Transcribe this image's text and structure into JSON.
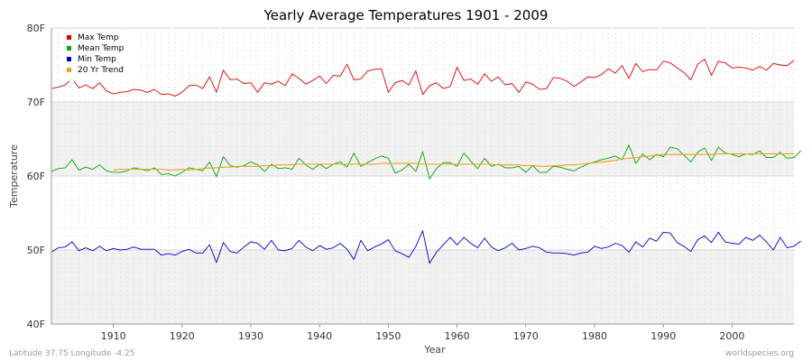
{
  "chart_data": {
    "type": "line",
    "title": "Yearly Average Temperatures 1901 - 2009",
    "xlabel": "Year",
    "ylabel": "Temperature",
    "x_tick_labels": [
      "1910",
      "1920",
      "1930",
      "1940",
      "1950",
      "1960",
      "1970",
      "1980",
      "1990",
      "2000"
    ],
    "y_tick_labels": [
      "40F",
      "50F",
      "60F",
      "70F",
      "80F"
    ],
    "y_tick_values": [
      40,
      50,
      60,
      70,
      80
    ],
    "x_tick_values": [
      1910,
      1920,
      1930,
      1940,
      1950,
      1960,
      1970,
      1980,
      1990,
      2000
    ],
    "xlim": [
      1901,
      2009
    ],
    "ylim": [
      40,
      80
    ],
    "grid": true,
    "legend_position": "top-left",
    "footer_left": "Latitude 37.75 Longitude -4.25",
    "footer_right": "worldspecies.org",
    "years_start": 1901,
    "series": [
      {
        "name": "Max Temp",
        "color": "#dd0000",
        "values": [
          71.8,
          72.0,
          72.3,
          73.2,
          71.9,
          72.3,
          71.8,
          72.6,
          71.5,
          71.1,
          71.3,
          71.4,
          71.7,
          71.6,
          71.3,
          71.7,
          71.0,
          71.1,
          70.8,
          71.3,
          72.2,
          72.3,
          71.8,
          73.4,
          71.3,
          74.3,
          73.0,
          73.1,
          72.5,
          72.6,
          71.3,
          72.6,
          72.4,
          72.8,
          72.2,
          73.8,
          73.2,
          72.4,
          72.9,
          73.5,
          72.5,
          73.6,
          73.5,
          75.1,
          73.0,
          73.1,
          74.2,
          74.4,
          74.5,
          71.3,
          72.6,
          72.9,
          72.3,
          74.2,
          71.0,
          72.2,
          72.6,
          71.8,
          72.1,
          74.7,
          72.9,
          73.1,
          72.4,
          73.8,
          72.8,
          73.4,
          72.3,
          72.5,
          71.3,
          72.7,
          72.4,
          71.7,
          71.8,
          73.3,
          73.2,
          72.8,
          72.1,
          72.7,
          73.4,
          73.3,
          73.7,
          74.5,
          73.9,
          74.9,
          73.2,
          75.2,
          74.1,
          74.4,
          74.3,
          75.5,
          75.3,
          74.6,
          74.0,
          73.0,
          75.1,
          75.8,
          73.6,
          75.5,
          75.3,
          74.6,
          74.7,
          74.6,
          74.3,
          74.8,
          74.3,
          75.2,
          75.0,
          74.9,
          75.6
        ]
      },
      {
        "name": "Mean Temp",
        "color": "#00aa00",
        "values": [
          60.6,
          61.0,
          61.1,
          62.2,
          60.8,
          61.2,
          60.9,
          61.5,
          60.7,
          60.5,
          60.5,
          60.7,
          61.1,
          60.9,
          60.7,
          61.1,
          60.2,
          60.3,
          60.0,
          60.5,
          61.1,
          60.9,
          60.7,
          61.9,
          59.9,
          62.6,
          61.4,
          61.2,
          61.4,
          61.9,
          61.5,
          60.6,
          61.6,
          61.0,
          61.1,
          60.9,
          62.4,
          61.5,
          60.9,
          61.6,
          61.0,
          61.6,
          61.9,
          61.2,
          63.1,
          61.3,
          61.8,
          62.3,
          62.7,
          62.4,
          60.4,
          60.8,
          61.6,
          60.6,
          63.3,
          59.6,
          61.0,
          61.8,
          61.8,
          61.3,
          63.1,
          62.0,
          61.0,
          62.4,
          61.3,
          61.6,
          61.1,
          61.1,
          61.3,
          60.5,
          61.4,
          60.5,
          60.5,
          61.3,
          61.2,
          60.9,
          60.7,
          61.2,
          61.6,
          61.9,
          62.2,
          62.4,
          62.7,
          62.2,
          64.2,
          61.7,
          63.0,
          62.2,
          62.9,
          62.6,
          63.9,
          63.7,
          62.8,
          61.9,
          63.2,
          63.8,
          62.1,
          63.9,
          63.1,
          62.9,
          62.6,
          63.0,
          62.9,
          63.4,
          62.5,
          62.5,
          63.2,
          62.4,
          62.5,
          63.4
        ]
      },
      {
        "name": "Min Temp",
        "color": "#0000cc",
        "values": [
          49.7,
          50.3,
          50.4,
          51.1,
          49.9,
          50.3,
          49.9,
          50.5,
          49.9,
          50.2,
          50.0,
          50.1,
          50.4,
          50.1,
          50.1,
          50.1,
          49.3,
          49.5,
          49.3,
          49.8,
          50.1,
          49.6,
          49.6,
          50.7,
          48.3,
          51.0,
          49.8,
          49.6,
          50.4,
          51.1,
          50.9,
          50.1,
          51.3,
          50.0,
          49.9,
          50.2,
          51.3,
          50.4,
          49.9,
          50.6,
          50.1,
          50.3,
          50.9,
          50.1,
          48.7,
          51.3,
          49.9,
          50.4,
          50.8,
          51.4,
          49.9,
          49.5,
          49.0,
          50.5,
          52.6,
          48.2,
          49.7,
          50.7,
          51.7,
          50.7,
          51.7,
          50.9,
          50.3,
          51.6,
          50.4,
          49.9,
          50.3,
          50.9,
          50.0,
          50.2,
          50.5,
          50.3,
          49.7,
          49.6,
          49.6,
          49.5,
          49.3,
          49.6,
          49.7,
          50.5,
          50.2,
          50.4,
          50.9,
          50.6,
          49.7,
          51.1,
          50.4,
          51.6,
          51.2,
          52.4,
          52.3,
          51.0,
          50.5,
          49.8,
          51.4,
          51.9,
          51.0,
          52.4,
          51.1,
          50.9,
          50.8,
          51.7,
          51.3,
          52.0,
          51.1,
          50.0,
          51.7,
          50.3,
          50.5,
          51.2
        ]
      },
      {
        "name": "20 Yr Trend",
        "color": "#f0a020",
        "values": [
          null,
          null,
          null,
          null,
          null,
          null,
          null,
          null,
          null,
          60.8,
          60.9,
          60.9,
          60.9,
          60.9,
          60.9,
          60.9,
          60.9,
          60.8,
          60.8,
          60.9,
          60.8,
          60.9,
          61.0,
          61.1,
          61.1,
          61.2,
          61.2,
          61.3,
          61.3,
          61.3,
          61.3,
          61.4,
          61.4,
          61.5,
          61.5,
          61.5,
          61.6,
          61.6,
          61.6,
          61.6,
          61.6,
          61.6,
          61.6,
          61.6,
          61.6,
          61.6,
          61.6,
          61.6,
          61.7,
          61.7,
          61.7,
          61.7,
          61.7,
          61.7,
          61.6,
          61.6,
          61.6,
          61.6,
          61.6,
          61.6,
          61.6,
          61.6,
          61.6,
          61.6,
          61.6,
          61.5,
          61.5,
          61.5,
          61.5,
          61.4,
          61.4,
          61.3,
          61.3,
          61.4,
          61.4,
          61.5,
          61.5,
          61.6,
          61.7,
          61.8,
          61.9,
          62.0,
          62.1,
          62.3,
          62.4,
          62.5,
          62.6,
          62.7,
          62.8,
          62.9,
          62.9,
          62.9,
          62.9,
          62.9,
          62.9,
          62.9,
          62.9,
          63.0,
          63.0,
          63.0,
          63.0,
          63.0,
          63.0,
          63.0,
          63.0,
          63.0,
          63.0,
          63.0,
          63.0
        ]
      }
    ]
  }
}
